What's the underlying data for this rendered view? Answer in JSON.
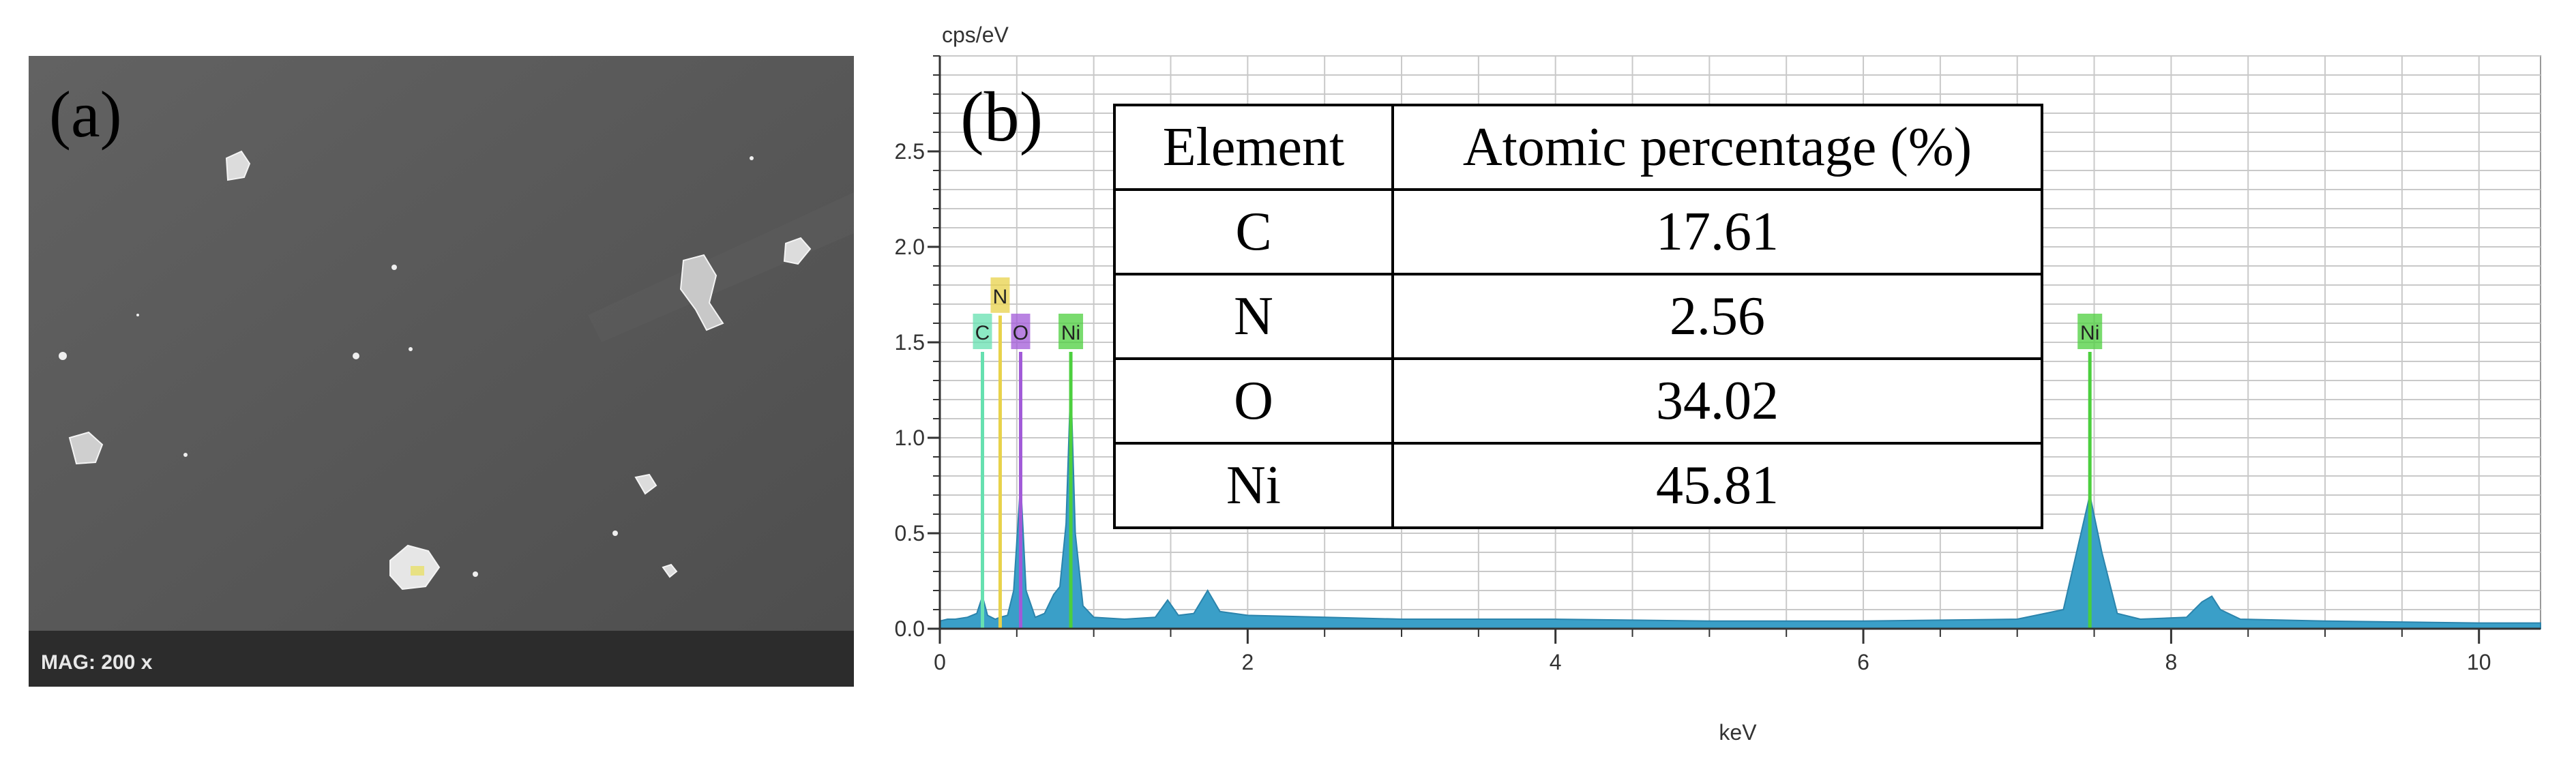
{
  "panel_a": {
    "label": "(a)",
    "mag_text": "MAG: 200 x"
  },
  "panel_b": {
    "label": "(b)",
    "table": {
      "headers": [
        "Element",
        "Atomic percentage (%)"
      ],
      "rows": [
        [
          "C",
          "17.61"
        ],
        [
          "N",
          "2.56"
        ],
        [
          "O",
          "34.02"
        ],
        [
          "Ni",
          "45.81"
        ]
      ]
    }
  },
  "chart_data": {
    "type": "area",
    "xlabel": "keV",
    "ylabel": "cps/eV",
    "xlim": [
      0,
      10.4
    ],
    "ylim": [
      0,
      3.0
    ],
    "x_ticks": [
      0,
      2,
      4,
      6,
      8,
      10
    ],
    "y_ticks": [
      0.0,
      0.5,
      1.0,
      1.5,
      2.0,
      2.5
    ],
    "y_tick_labels": [
      "0.0",
      "0.5",
      "1.0",
      "1.5",
      "2.0",
      "2.5"
    ],
    "grid": true,
    "colors": {
      "spectrum_fill": "#3a9fc8",
      "spectrum_stroke": "#2b84ac",
      "grid": "#c9c9c9",
      "C": "#66e0b0",
      "N": "#e8d24a",
      "O": "#a15ad8",
      "Ni": "#4ccf3e"
    },
    "spectrum": [
      [
        0.0,
        0.04
      ],
      [
        0.05,
        0.05
      ],
      [
        0.1,
        0.05
      ],
      [
        0.18,
        0.06
      ],
      [
        0.24,
        0.08
      ],
      [
        0.277,
        0.17
      ],
      [
        0.31,
        0.07
      ],
      [
        0.36,
        0.05
      ],
      [
        0.392,
        0.06
      ],
      [
        0.44,
        0.07
      ],
      [
        0.48,
        0.2
      ],
      [
        0.525,
        0.77
      ],
      [
        0.56,
        0.2
      ],
      [
        0.62,
        0.06
      ],
      [
        0.68,
        0.08
      ],
      [
        0.74,
        0.18
      ],
      [
        0.78,
        0.22
      ],
      [
        0.82,
        0.55
      ],
      [
        0.851,
        1.3
      ],
      [
        0.88,
        0.5
      ],
      [
        0.93,
        0.12
      ],
      [
        1.0,
        0.06
      ],
      [
        1.2,
        0.05
      ],
      [
        1.4,
        0.06
      ],
      [
        1.48,
        0.15
      ],
      [
        1.55,
        0.07
      ],
      [
        1.65,
        0.08
      ],
      [
        1.74,
        0.2
      ],
      [
        1.82,
        0.09
      ],
      [
        2.0,
        0.07
      ],
      [
        3.0,
        0.05
      ],
      [
        4.0,
        0.05
      ],
      [
        5.0,
        0.04
      ],
      [
        6.0,
        0.04
      ],
      [
        7.0,
        0.05
      ],
      [
        7.3,
        0.1
      ],
      [
        7.4,
        0.45
      ],
      [
        7.472,
        0.7
      ],
      [
        7.55,
        0.4
      ],
      [
        7.65,
        0.08
      ],
      [
        7.8,
        0.05
      ],
      [
        8.1,
        0.06
      ],
      [
        8.2,
        0.14
      ],
      [
        8.264,
        0.17
      ],
      [
        8.32,
        0.1
      ],
      [
        8.45,
        0.05
      ],
      [
        9.0,
        0.04
      ],
      [
        10.0,
        0.03
      ],
      [
        10.4,
        0.03
      ]
    ],
    "markers": [
      {
        "element": "C",
        "x": 0.277,
        "y": 1.45,
        "label": "C"
      },
      {
        "element": "N",
        "x": 0.392,
        "y": 1.64,
        "label": "N"
      },
      {
        "element": "O",
        "x": 0.525,
        "y": 1.45,
        "label": "O"
      },
      {
        "element": "Ni",
        "x": 0.851,
        "y": 1.45,
        "label": "Ni"
      },
      {
        "element": "Ni",
        "x": 7.472,
        "y": 1.45,
        "label": "Ni"
      }
    ]
  }
}
